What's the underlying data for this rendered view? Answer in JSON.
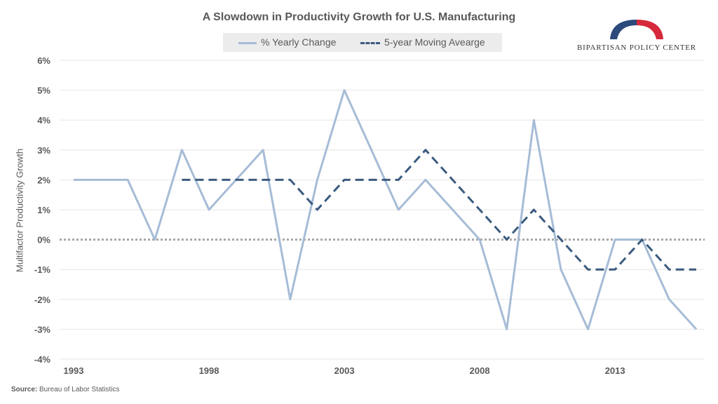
{
  "chart_data": {
    "type": "line",
    "title": "A Slowdown in Productivity Growth for U.S. Manufacturing",
    "ylabel": "Multifactor Productivity Growth",
    "xlabel": "",
    "x": [
      1993,
      1994,
      1995,
      1996,
      1997,
      1998,
      1999,
      2000,
      2001,
      2002,
      2003,
      2004,
      2005,
      2006,
      2007,
      2008,
      2009,
      2010,
      2011,
      2012,
      2013,
      2014,
      2015,
      2016
    ],
    "xlim": [
      1993,
      2016
    ],
    "x_tick_labels": [
      "1993",
      "1998",
      "2003",
      "2008",
      "2013"
    ],
    "x_tick_values": [
      1993,
      1998,
      2003,
      2008,
      2013
    ],
    "ylim": [
      -4,
      6
    ],
    "y_tick_values": [
      6,
      5,
      4,
      3,
      2,
      1,
      0,
      -1,
      -2,
      -3,
      -4
    ],
    "y_tick_labels": [
      "6%",
      "5%",
      "4%",
      "3%",
      "2%",
      "1%",
      "0%",
      "-1%",
      "-2%",
      "-3%",
      "-4%"
    ],
    "series": [
      {
        "name": "% Yearly Change",
        "color": "#a6bcd6",
        "style": "solid",
        "values": [
          2,
          2,
          2,
          0,
          3,
          1,
          2,
          3,
          -2,
          2,
          5,
          3,
          1,
          2,
          1,
          0,
          -3,
          4,
          -1,
          -3,
          0,
          0,
          -2,
          -3
        ]
      },
      {
        "name": "5-year Moving Avearge",
        "color": "#3b5a7f",
        "style": "dashed",
        "values": [
          null,
          null,
          null,
          null,
          2,
          2,
          2,
          2,
          2,
          1,
          2,
          2,
          2,
          3,
          2,
          1,
          0,
          1,
          0,
          -1,
          -1,
          0,
          -1,
          -1
        ]
      }
    ],
    "zero_line": "dotted",
    "grid": true,
    "legend_position": "top"
  },
  "logo": {
    "text": "BIPARTISAN POLICY CENTER",
    "colors": [
      "#2c4a7c",
      "#d6293b"
    ]
  },
  "source": {
    "label": "Source:",
    "text": "Bureau of Labor Statistics"
  }
}
